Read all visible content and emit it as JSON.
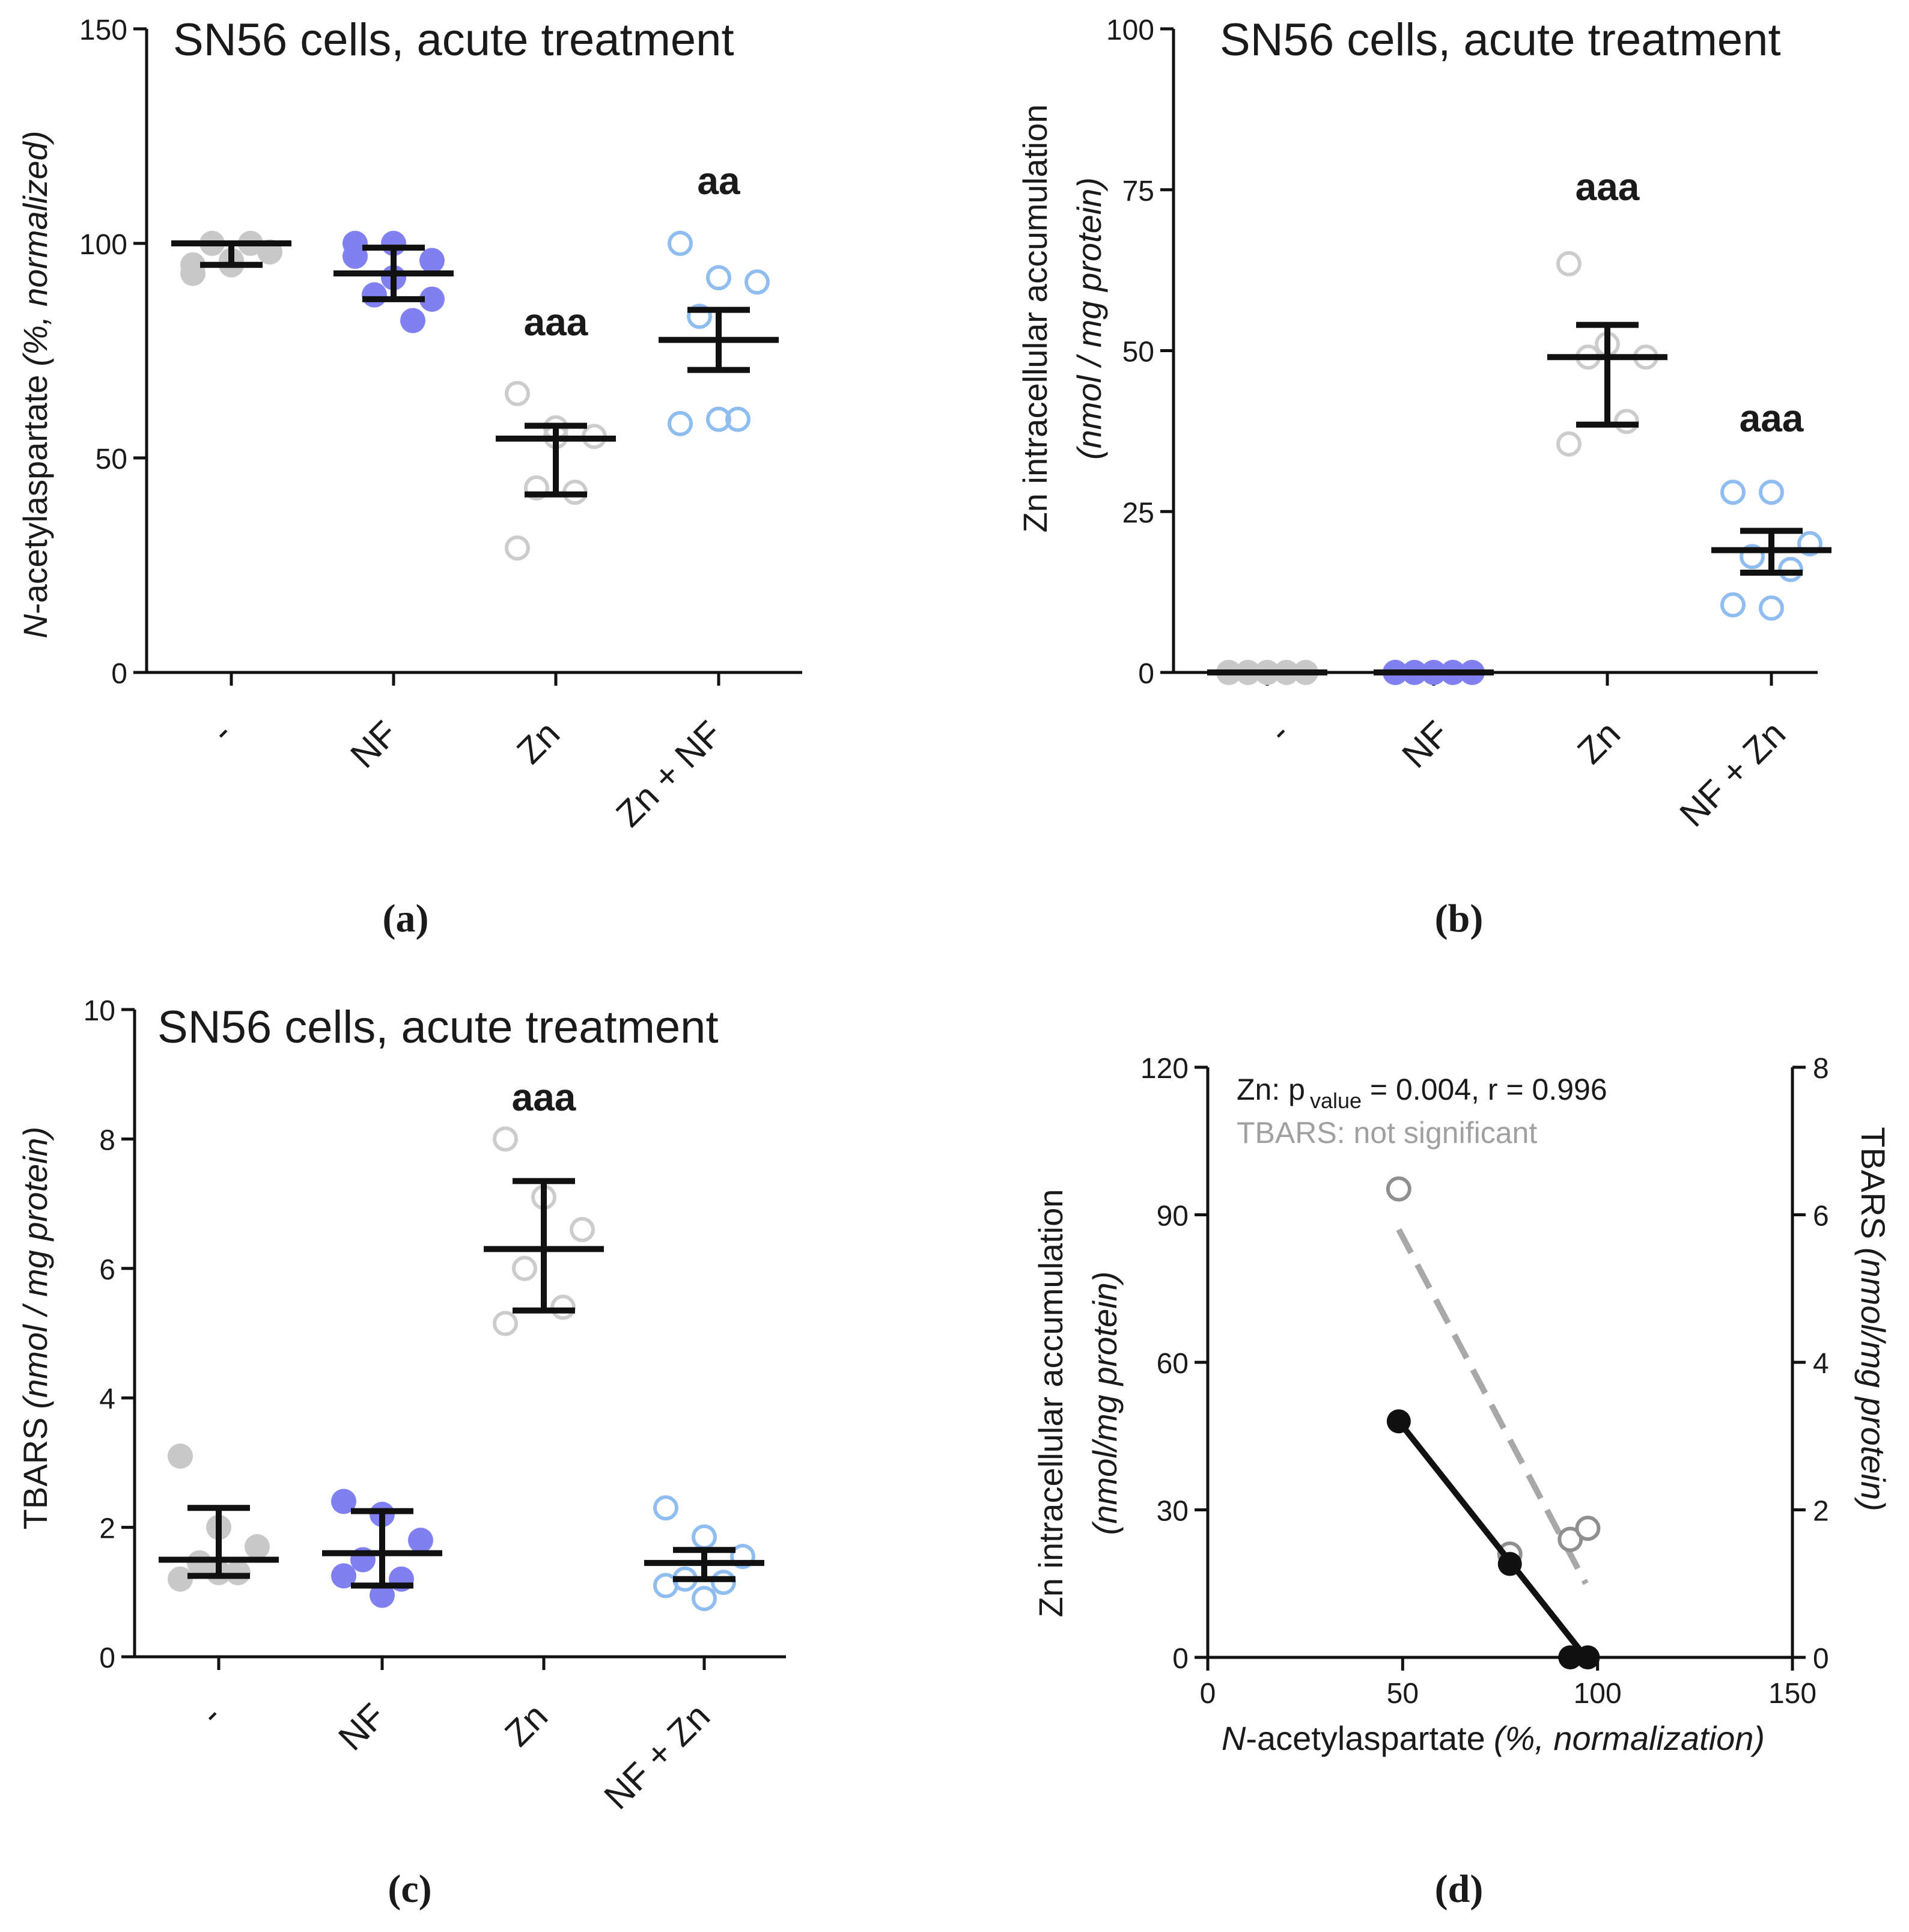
{
  "colors": {
    "axis": "#111111",
    "control": "#c8c8c8",
    "nf": "#8080f0",
    "zn": "#cccccc",
    "combo": "#8fbdf0",
    "tbars_line": "#a8a8a8"
  },
  "chart_data": [
    {
      "id": "a",
      "type": "scatter",
      "panel_label": "(a)",
      "title": "SN56 cells, acute treatment",
      "ylabel_italic_prefix": "N",
      "ylabel_main": "-acetylaspartate",
      "ylabel_italic_suffix": "(%, normalized)",
      "ylim": [
        0,
        150
      ],
      "yticks": [
        "0",
        "50",
        "100",
        "150"
      ],
      "categories": [
        "-",
        "NF",
        "Zn",
        "Zn + NF"
      ],
      "annotations": [
        "",
        "",
        "aaa",
        "aa"
      ],
      "groups": [
        {
          "name": "-",
          "style": "filled",
          "color": "#c8c8c8",
          "points": [
            95,
            96,
            98,
            100,
            100,
            93,
            95
          ],
          "mean": 100,
          "err": [
            95,
            100
          ]
        },
        {
          "name": "NF",
          "style": "filled",
          "color": "#8080f0",
          "points": [
            100,
            92,
            96,
            88,
            82,
            97,
            100,
            87
          ],
          "mean": 93,
          "err": [
            87,
            99
          ]
        },
        {
          "name": "Zn",
          "style": "open",
          "color": "#cccccc",
          "points": [
            65,
            57,
            55,
            43,
            42,
            29,
            55
          ],
          "mean": 54.5,
          "err": [
            41.5,
            57.5
          ]
        },
        {
          "name": "Zn + NF",
          "style": "open",
          "color": "#8fbdf0",
          "points": [
            100,
            92,
            91,
            83,
            59,
            58,
            59
          ],
          "mean": 77.5,
          "err": [
            70.5,
            84.5
          ]
        }
      ]
    },
    {
      "id": "b",
      "type": "scatter",
      "panel_label": "(b)",
      "title": "SN56 cells, acute treatment",
      "ylabel_main": "Zn intracellular accumulation",
      "ylabel_sub": "(nmol / mg protein)",
      "ylim": [
        0,
        100
      ],
      "yticks": [
        "0",
        "25",
        "50",
        "75",
        "100"
      ],
      "categories": [
        "-",
        "NF",
        "Zn",
        "NF + Zn"
      ],
      "annotations": [
        "",
        "",
        "aaa",
        "aaa"
      ],
      "groups": [
        {
          "name": "-",
          "style": "filled",
          "color": "#c8c8c8",
          "points": [
            0,
            0,
            0,
            0,
            0,
            0
          ],
          "mean": 0,
          "err": [
            0,
            0
          ]
        },
        {
          "name": "NF",
          "style": "filled",
          "color": "#8080f0",
          "points": [
            0,
            0,
            0,
            0,
            0,
            0
          ],
          "mean": 0,
          "err": [
            0,
            0
          ]
        },
        {
          "name": "Zn",
          "style": "open",
          "color": "#cccccc",
          "points": [
            63.5,
            51,
            49,
            49,
            39,
            35.5
          ],
          "mean": 49,
          "err": [
            38.5,
            54
          ]
        },
        {
          "name": "NF + Zn",
          "style": "open",
          "color": "#8fbdf0",
          "points": [
            28,
            28,
            20,
            18,
            16,
            10.5,
            10
          ],
          "mean": 19,
          "err": [
            15.5,
            22
          ]
        }
      ]
    },
    {
      "id": "c",
      "type": "scatter",
      "panel_label": "(c)",
      "title": "SN56 cells, acute treatment",
      "ylabel_main": "TBARS",
      "ylabel_italic_suffix": "(nmol / mg protein)",
      "ylim": [
        0,
        10
      ],
      "yticks": [
        "0",
        "2",
        "4",
        "6",
        "8",
        "10"
      ],
      "categories": [
        "-",
        "NF",
        "Zn",
        "NF + Zn"
      ],
      "annotations": [
        "",
        "",
        "aaa",
        ""
      ],
      "groups": [
        {
          "name": "-",
          "style": "filled",
          "color": "#c8c8c8",
          "points": [
            3.1,
            2.0,
            1.7,
            1.45,
            1.3,
            1.2,
            1.3
          ],
          "mean": 1.5,
          "err": [
            1.25,
            2.3
          ]
        },
        {
          "name": "NF",
          "style": "filled",
          "color": "#8080f0",
          "points": [
            2.4,
            2.2,
            1.8,
            1.5,
            1.2,
            1.25,
            0.95
          ],
          "mean": 1.6,
          "err": [
            1.1,
            2.25
          ]
        },
        {
          "name": "Zn",
          "style": "open",
          "color": "#cccccc",
          "points": [
            8.0,
            7.1,
            6.6,
            6.0,
            5.4,
            5.15
          ],
          "mean": 6.3,
          "err": [
            5.35,
            7.35
          ]
        },
        {
          "name": "NF + Zn",
          "style": "open",
          "color": "#8fbdf0",
          "points": [
            2.3,
            1.85,
            1.55,
            1.2,
            1.15,
            1.1,
            0.9
          ],
          "mean": 1.45,
          "err": [
            1.2,
            1.65
          ]
        }
      ]
    },
    {
      "id": "d",
      "type": "scatter",
      "panel_label": "(d)",
      "xlabel_italic_prefix": "N",
      "xlabel_main": "-acetylaspartate",
      "xlabel_italic_suffix": "(%, normalization)",
      "ylabel_main": "Zn intracellular accumulation",
      "ylabel_sub": "(nmol/mg protein)",
      "y2label_main": "TBARS",
      "y2label_italic_suffix": "(nmol/mg protein)",
      "xlim": [
        0,
        150
      ],
      "ylim": [
        0,
        120
      ],
      "y2lim": [
        0,
        8
      ],
      "xticks": [
        "0",
        "50",
        "100",
        "150"
      ],
      "yticks": [
        "0",
        "30",
        "60",
        "90",
        "120"
      ],
      "y2ticks": [
        "0",
        "2",
        "4",
        "6",
        "8"
      ],
      "legend_zn_prefix": "Zn: p",
      "legend_zn_sub": "value",
      "legend_zn_suffix": " = 0.004, r = 0.996",
      "legend_tbars": "TBARS: not significant",
      "series": [
        {
          "name": "Zn",
          "axis": "left",
          "style": "filled",
          "color": "#111111",
          "x": [
            49,
            77.5,
            93,
            97.5
          ],
          "y": [
            48,
            19,
            0,
            0
          ],
          "fit": [
            [
              49,
              48
            ],
            [
              97,
              0
            ]
          ]
        },
        {
          "name": "TBARS",
          "axis": "right",
          "style": "open",
          "color": "#8f8f8f",
          "x": [
            49,
            77.5,
            93,
            97.5
          ],
          "y": [
            6.35,
            1.4,
            1.6,
            1.75
          ],
          "fit": [
            [
              49,
              5.8
            ],
            [
              97,
              1.0
            ]
          ]
        }
      ]
    }
  ]
}
